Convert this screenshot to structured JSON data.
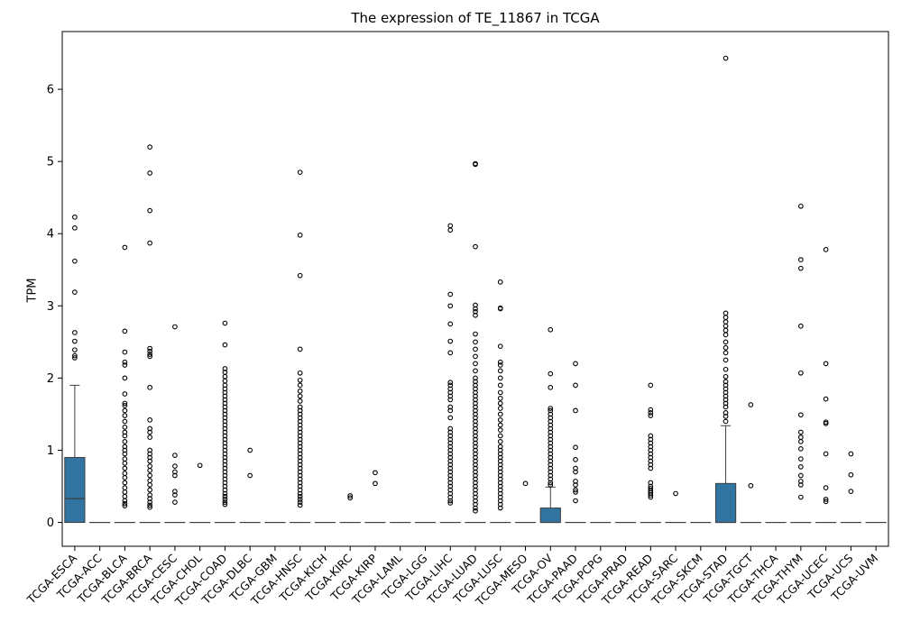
{
  "chart_data": {
    "type": "box",
    "title": "The expression of TE_11867 in TCGA",
    "xlabel": "",
    "ylabel": "TPM",
    "ylim": [
      -0.33,
      6.8
    ],
    "yticks": [
      0,
      1,
      2,
      3,
      4,
      5,
      6
    ],
    "grid": false,
    "box_color": "#3274a1",
    "categories": [
      "TCGA-ESCA",
      "TCGA-ACC",
      "TCGA-BLCA",
      "TCGA-BRCA",
      "TCGA-CESC",
      "TCGA-CHOL",
      "TCGA-COAD",
      "TCGA-DLBC",
      "TCGA-GBM",
      "TCGA-HNSC",
      "TCGA-KICH",
      "TCGA-KIRC",
      "TCGA-KIRP",
      "TCGA-LAML",
      "TCGA-LGG",
      "TCGA-LIHC",
      "TCGA-LUAD",
      "TCGA-LUSC",
      "TCGA-MESO",
      "TCGA-OV",
      "TCGA-PAAD",
      "TCGA-PCPG",
      "TCGA-PRAD",
      "TCGA-READ",
      "TCGA-SARC",
      "TCGA-SKCM",
      "TCGA-STAD",
      "TCGA-TGCT",
      "TCGA-THCA",
      "TCGA-THYM",
      "TCGA-UCEC",
      "TCGA-UCS",
      "TCGA-UVM"
    ],
    "boxes": [
      {
        "q1": 0,
        "median": 0.33,
        "q3": 0.9,
        "whisker_low": 0,
        "whisker_high": 1.9,
        "outliers": [
          4.23,
          4.08,
          3.62,
          3.19,
          2.63,
          2.51,
          2.39,
          2.31,
          2.28
        ]
      },
      {
        "q1": 0,
        "median": 0,
        "q3": 0,
        "whisker_low": 0,
        "whisker_high": 0,
        "outliers": []
      },
      {
        "q1": 0,
        "median": 0,
        "q3": 0,
        "whisker_low": 0,
        "whisker_high": 0,
        "outliers": [
          3.81,
          2.65,
          2.36,
          2.22,
          2.18,
          2.0,
          1.78,
          1.65,
          1.62,
          1.55,
          1.48,
          1.4,
          1.32,
          1.25,
          1.2,
          1.12,
          1.05,
          1.0,
          0.95,
          0.88,
          0.82,
          0.75,
          0.68,
          0.62,
          0.55,
          0.48,
          0.42,
          0.36,
          0.3,
          0.26,
          0.23
        ]
      },
      {
        "q1": 0,
        "median": 0,
        "q3": 0,
        "whisker_low": 0,
        "whisker_high": 0,
        "outliers": [
          5.2,
          4.84,
          4.32,
          3.87,
          2.41,
          2.37,
          2.33,
          2.3,
          1.87,
          1.42,
          1.3,
          1.25,
          1.18,
          1.0,
          0.95,
          0.9,
          0.85,
          0.78,
          0.72,
          0.65,
          0.58,
          0.52,
          0.45,
          0.38,
          0.33,
          0.28,
          0.24,
          0.21
        ]
      },
      {
        "q1": 0,
        "median": 0,
        "q3": 0,
        "whisker_low": 0,
        "whisker_high": 0,
        "outliers": [
          2.71,
          0.93,
          0.78,
          0.7,
          0.65,
          0.43,
          0.38,
          0.28
        ]
      },
      {
        "q1": 0,
        "median": 0,
        "q3": 0,
        "whisker_low": 0,
        "whisker_high": 0,
        "outliers": [
          0.79
        ]
      },
      {
        "q1": 0,
        "median": 0,
        "q3": 0,
        "whisker_low": 0,
        "whisker_high": 0,
        "outliers": [
          2.76,
          2.46,
          2.13,
          2.08,
          2.02,
          1.96,
          1.9,
          1.85,
          1.8,
          1.75,
          1.7,
          1.65,
          1.6,
          1.55,
          1.5,
          1.45,
          1.4,
          1.35,
          1.3,
          1.25,
          1.2,
          1.15,
          1.1,
          1.05,
          1.0,
          0.95,
          0.9,
          0.85,
          0.8,
          0.75,
          0.7,
          0.65,
          0.6,
          0.55,
          0.5,
          0.45,
          0.4,
          0.36,
          0.32,
          0.28,
          0.25
        ]
      },
      {
        "q1": 0,
        "median": 0,
        "q3": 0,
        "whisker_low": 0,
        "whisker_high": 0,
        "outliers": [
          1.0,
          0.65
        ]
      },
      {
        "q1": 0,
        "median": 0,
        "q3": 0,
        "whisker_low": 0,
        "whisker_high": 0,
        "outliers": []
      },
      {
        "q1": 0,
        "median": 0,
        "q3": 0,
        "whisker_low": 0,
        "whisker_high": 0,
        "outliers": [
          4.85,
          3.98,
          3.42,
          2.4,
          2.07,
          1.97,
          1.9,
          1.82,
          1.75,
          1.68,
          1.6,
          1.55,
          1.5,
          1.45,
          1.4,
          1.35,
          1.3,
          1.25,
          1.2,
          1.15,
          1.1,
          1.05,
          1.0,
          0.95,
          0.9,
          0.85,
          0.8,
          0.75,
          0.7,
          0.65,
          0.6,
          0.55,
          0.5,
          0.45,
          0.4,
          0.36,
          0.32,
          0.28,
          0.24
        ]
      },
      {
        "q1": 0,
        "median": 0,
        "q3": 0,
        "whisker_low": 0,
        "whisker_high": 0,
        "outliers": []
      },
      {
        "q1": 0,
        "median": 0,
        "q3": 0,
        "whisker_low": 0,
        "whisker_high": 0,
        "outliers": [
          0.37,
          0.34
        ]
      },
      {
        "q1": 0,
        "median": 0,
        "q3": 0,
        "whisker_low": 0,
        "whisker_high": 0,
        "outliers": [
          0.69,
          0.54
        ]
      },
      {
        "q1": 0,
        "median": 0,
        "q3": 0,
        "whisker_low": 0,
        "whisker_high": 0,
        "outliers": []
      },
      {
        "q1": 0,
        "median": 0,
        "q3": 0,
        "whisker_low": 0,
        "whisker_high": 0,
        "outliers": []
      },
      {
        "q1": 0,
        "median": 0,
        "q3": 0,
        "whisker_low": 0,
        "whisker_high": 0,
        "outliers": [
          4.11,
          4.05,
          3.16,
          3.0,
          2.75,
          2.51,
          2.35,
          1.94,
          1.9,
          1.85,
          1.8,
          1.75,
          1.7,
          1.6,
          1.55,
          1.45,
          1.3,
          1.25,
          1.2,
          1.15,
          1.1,
          1.05,
          1.0,
          0.95,
          0.9,
          0.85,
          0.8,
          0.75,
          0.7,
          0.65,
          0.6,
          0.55,
          0.5,
          0.45,
          0.4,
          0.35,
          0.3,
          0.27
        ]
      },
      {
        "q1": 0,
        "median": 0,
        "q3": 0,
        "whisker_low": 0,
        "whisker_high": 0,
        "outliers": [
          4.97,
          4.96,
          3.82,
          3.01,
          2.96,
          2.92,
          2.87,
          2.61,
          2.5,
          2.4,
          2.3,
          2.2,
          2.1,
          2.0,
          1.95,
          1.9,
          1.85,
          1.8,
          1.75,
          1.7,
          1.65,
          1.6,
          1.55,
          1.5,
          1.45,
          1.4,
          1.35,
          1.3,
          1.25,
          1.2,
          1.15,
          1.1,
          1.05,
          1.0,
          0.95,
          0.9,
          0.85,
          0.8,
          0.75,
          0.7,
          0.65,
          0.6,
          0.55,
          0.5,
          0.45,
          0.4,
          0.35,
          0.3,
          0.25,
          0.2,
          0.16
        ]
      },
      {
        "q1": 0,
        "median": 0,
        "q3": 0,
        "whisker_low": 0,
        "whisker_high": 0,
        "outliers": [
          3.33,
          2.97,
          2.96,
          2.44,
          2.22,
          2.18,
          2.1,
          2.0,
          1.9,
          1.8,
          1.72,
          1.65,
          1.58,
          1.5,
          1.42,
          1.35,
          1.28,
          1.2,
          1.12,
          1.05,
          1.0,
          0.95,
          0.9,
          0.85,
          0.8,
          0.75,
          0.7,
          0.65,
          0.6,
          0.55,
          0.5,
          0.45,
          0.4,
          0.35,
          0.3,
          0.25,
          0.2
        ]
      },
      {
        "q1": 0,
        "median": 0,
        "q3": 0,
        "whisker_low": 0,
        "whisker_high": 0,
        "outliers": [
          0.54
        ]
      },
      {
        "q1": 0,
        "median": 0,
        "q3": 0.2,
        "whisker_low": 0,
        "whisker_high": 0.49,
        "outliers": [
          2.67,
          2.06,
          1.87,
          1.58,
          1.55,
          1.5,
          1.45,
          1.4,
          1.35,
          1.3,
          1.25,
          1.2,
          1.15,
          1.1,
          1.05,
          1.0,
          0.95,
          0.9,
          0.85,
          0.8,
          0.75,
          0.7,
          0.65,
          0.6,
          0.55,
          0.52
        ]
      },
      {
        "q1": 0,
        "median": 0,
        "q3": 0,
        "whisker_low": 0,
        "whisker_high": 0,
        "outliers": [
          2.2,
          1.9,
          1.55,
          1.04,
          0.87,
          0.75,
          0.7,
          0.57,
          0.52,
          0.45,
          0.42,
          0.3
        ]
      },
      {
        "q1": 0,
        "median": 0,
        "q3": 0,
        "whisker_low": 0,
        "whisker_high": 0,
        "outliers": []
      },
      {
        "q1": 0,
        "median": 0,
        "q3": 0,
        "whisker_low": 0,
        "whisker_high": 0,
        "outliers": []
      },
      {
        "q1": 0,
        "median": 0,
        "q3": 0,
        "whisker_low": 0,
        "whisker_high": 0,
        "outliers": [
          1.9,
          1.56,
          1.52,
          1.48,
          1.2,
          1.15,
          1.1,
          1.05,
          1.0,
          0.95,
          0.9,
          0.85,
          0.8,
          0.75,
          0.55,
          0.5,
          0.47,
          0.44,
          0.41,
          0.38,
          0.35
        ]
      },
      {
        "q1": 0,
        "median": 0,
        "q3": 0,
        "whisker_low": 0,
        "whisker_high": 0,
        "outliers": [
          0.4
        ]
      },
      {
        "q1": 0,
        "median": 0,
        "q3": 0,
        "whisker_low": 0,
        "whisker_high": 0,
        "outliers": []
      },
      {
        "q1": 0,
        "median": 0,
        "q3": 0.54,
        "whisker_low": 0,
        "whisker_high": 1.34,
        "outliers": [
          6.43,
          2.9,
          2.84,
          2.78,
          2.72,
          2.66,
          2.6,
          2.5,
          2.42,
          2.35,
          2.25,
          2.12,
          2.02,
          1.95,
          1.9,
          1.85,
          1.8,
          1.75,
          1.7,
          1.65,
          1.6,
          1.52,
          1.47,
          1.4
        ]
      },
      {
        "q1": 0,
        "median": 0,
        "q3": 0,
        "whisker_low": 0,
        "whisker_high": 0,
        "outliers": [
          1.63,
          0.51
        ]
      },
      {
        "q1": 0,
        "median": 0,
        "q3": 0,
        "whisker_low": 0,
        "whisker_high": 0,
        "outliers": []
      },
      {
        "q1": 0,
        "median": 0,
        "q3": 0,
        "whisker_low": 0,
        "whisker_high": 0,
        "outliers": [
          4.38,
          3.64,
          3.52,
          2.72,
          2.07,
          1.49,
          1.25,
          1.18,
          1.12,
          1.02,
          0.88,
          0.77,
          0.65,
          0.57,
          0.52,
          0.35
        ]
      },
      {
        "q1": 0,
        "median": 0,
        "q3": 0,
        "whisker_low": 0,
        "whisker_high": 0,
        "outliers": [
          3.78,
          2.2,
          1.71,
          1.39,
          1.37,
          0.95,
          0.48,
          0.32,
          0.29
        ]
      },
      {
        "q1": 0,
        "median": 0,
        "q3": 0,
        "whisker_low": 0,
        "whisker_high": 0,
        "outliers": [
          0.95,
          0.66,
          0.43
        ]
      },
      {
        "q1": 0,
        "median": 0,
        "q3": 0,
        "whisker_low": 0,
        "whisker_high": 0,
        "outliers": []
      }
    ]
  }
}
